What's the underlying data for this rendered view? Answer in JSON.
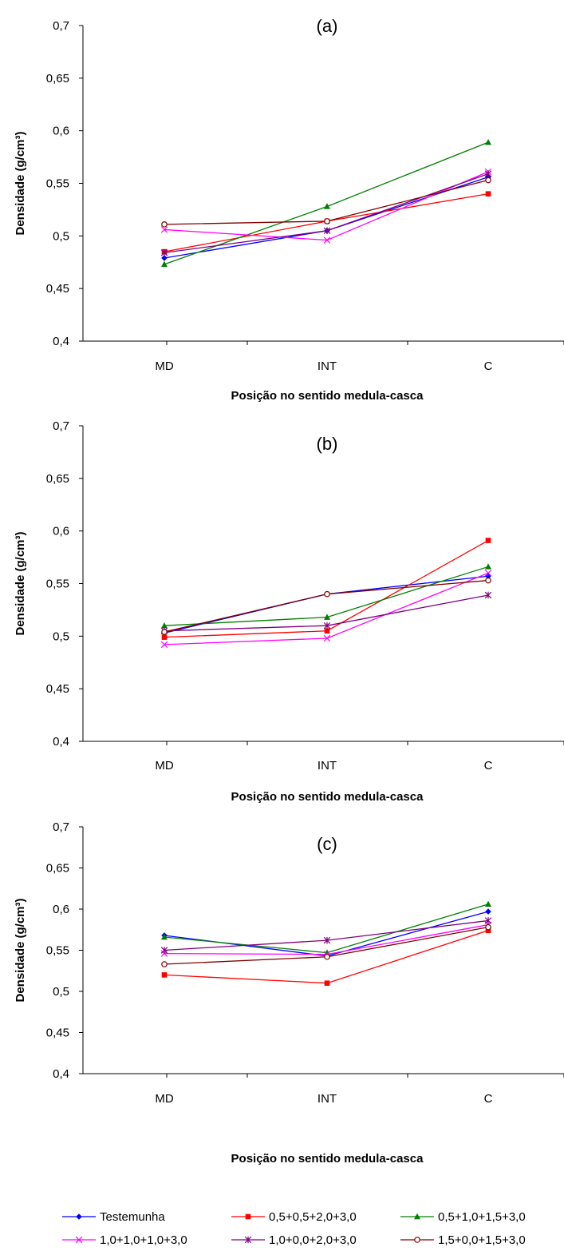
{
  "chart_data": [
    {
      "type": "line",
      "title": "(a)",
      "xlabel": "Posição no sentido medula-casca",
      "ylabel": "Densidade (g/cm³)",
      "categories": [
        "MD",
        "INT",
        "C"
      ],
      "ylim": [
        0.4,
        0.7
      ],
      "yticks": [
        "0,4",
        "0,45",
        "0,5",
        "0,55",
        "0,6",
        "0,65",
        "0,7"
      ],
      "series": [
        {
          "name": "Testemunha",
          "values": [
            0.479,
            0.505,
            0.556
          ]
        },
        {
          "name": "0,5+0,5+2,0+3,0",
          "values": [
            0.485,
            0.514,
            0.54
          ]
        },
        {
          "name": "0,5+1,0+1,5+3,0",
          "values": [
            0.473,
            0.528,
            0.589
          ]
        },
        {
          "name": "1,0+1,0+1,0+3,0",
          "values": [
            0.506,
            0.496,
            0.561
          ]
        },
        {
          "name": "1,0+0,0+2,0+3,0",
          "values": [
            0.484,
            0.505,
            0.559
          ]
        },
        {
          "name": "1,5+0,0+1,5+3,0",
          "values": [
            0.511,
            0.514,
            0.553
          ]
        }
      ]
    },
    {
      "type": "line",
      "title": "(b)",
      "xlabel": "Posição no sentido medula-casca",
      "ylabel": "Densidade (g/cm³)",
      "categories": [
        "MD",
        "INT",
        "C"
      ],
      "ylim": [
        0.4,
        0.7
      ],
      "yticks": [
        "0,4",
        "0,45",
        "0,5",
        "0,55",
        "0,6",
        "0,65",
        "0,7"
      ],
      "series": [
        {
          "name": "Testemunha",
          "values": [
            0.503,
            0.54,
            0.557
          ]
        },
        {
          "name": "0,5+0,5+2,0+3,0",
          "values": [
            0.499,
            0.505,
            0.591
          ]
        },
        {
          "name": "0,5+1,0+1,5+3,0",
          "values": [
            0.51,
            0.518,
            0.566
          ]
        },
        {
          "name": "1,0+1,0+1,0+3,0",
          "values": [
            0.492,
            0.498,
            0.56
          ]
        },
        {
          "name": "1,0+0,0+2,0+3,0",
          "values": [
            0.505,
            0.51,
            0.539
          ]
        },
        {
          "name": "1,5+0,0+1,5+3,0",
          "values": [
            0.504,
            0.54,
            0.553
          ]
        }
      ]
    },
    {
      "type": "line",
      "title": "(c)",
      "xlabel": "Posição no sentido medula-casca",
      "ylabel": "Densidade (g/cm³)",
      "categories": [
        "MD",
        "INT",
        "C"
      ],
      "ylim": [
        0.4,
        0.7
      ],
      "yticks": [
        "0,4",
        "0,45",
        "0,5",
        "0,55",
        "0,6",
        "0,65",
        "0,7"
      ],
      "series": [
        {
          "name": "Testemunha",
          "values": [
            0.568,
            0.543,
            0.597
          ]
        },
        {
          "name": "0,5+0,5+2,0+3,0",
          "values": [
            0.52,
            0.51,
            0.574
          ]
        },
        {
          "name": "0,5+1,0+1,5+3,0",
          "values": [
            0.566,
            0.547,
            0.606
          ]
        },
        {
          "name": "1,0+1,0+1,0+3,0",
          "values": [
            0.546,
            0.545,
            0.581
          ]
        },
        {
          "name": "1,0+0,0+2,0+3,0",
          "values": [
            0.55,
            0.562,
            0.586
          ]
        },
        {
          "name": "1,5+0,0+1,5+3,0",
          "values": [
            0.533,
            0.542,
            0.578
          ]
        }
      ]
    }
  ],
  "legend": {
    "placement": "bottom",
    "items": [
      {
        "label": "Testemunha",
        "color": "#0000ff",
        "marker": "diamond"
      },
      {
        "label": "0,5+0,5+2,0+3,0",
        "color": "#ff0000",
        "marker": "square"
      },
      {
        "label": "0,5+1,0+1,5+3,0",
        "color": "#008000",
        "marker": "triangle"
      },
      {
        "label": "1,0+1,0+1,0+3,0",
        "color": "#ff00ff",
        "marker": "x"
      },
      {
        "label": "1,0+0,0+2,0+3,0",
        "color": "#800080",
        "marker": "star"
      },
      {
        "label": "1,5+0,0+1,5+3,0",
        "color": "#800000",
        "marker": "circle"
      }
    ]
  }
}
